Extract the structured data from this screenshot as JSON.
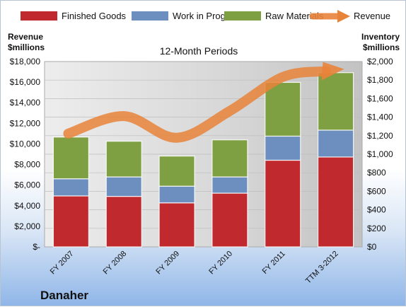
{
  "chart_data": {
    "type": "bar",
    "stacked": true,
    "subtitle": "12-Month Periods",
    "company": "Danaher",
    "categories": [
      "FY 2007",
      "FY 2008",
      "FY 2009",
      "FY 2010",
      "FY 2011",
      "TTM 3-2012"
    ],
    "series": [
      {
        "name": "Finished Goods",
        "axis": "right",
        "color": "#c0292d",
        "values": [
          550,
          545,
          475,
          580,
          935,
          970
        ]
      },
      {
        "name": "Work in Progress",
        "axis": "right",
        "color": "#6d8fbf",
        "values": [
          185,
          210,
          180,
          175,
          260,
          290
        ]
      },
      {
        "name": "Raw Materials",
        "axis": "right",
        "color": "#7f9f43",
        "values": [
          450,
          385,
          325,
          400,
          580,
          620
        ]
      }
    ],
    "line_series": {
      "name": "Revenue",
      "axis": "left",
      "color": "#e8833a",
      "values": [
        11000,
        12700,
        10600,
        13200,
        16500,
        17200
      ]
    },
    "left_axis": {
      "label_line1": "Revenue",
      "label_line2": "$millions",
      "ylim": [
        0,
        18000
      ],
      "ticks": [
        "$-",
        "$2,000",
        "$4,000",
        "$6,000",
        "$8,000",
        "$10,000",
        "$12,000",
        "$14,000",
        "$16,000",
        "$18,000"
      ]
    },
    "right_axis": {
      "label_line1": "Inventory",
      "label_line2": "$millions",
      "ylim": [
        0,
        2000
      ],
      "ticks": [
        "$0",
        "$200",
        "$400",
        "$600",
        "$800",
        "$1,000",
        "$1,200",
        "$1,400",
        "$1,600",
        "$1,800",
        "$2,000"
      ]
    },
    "grid": true,
    "legend_position": "top"
  }
}
